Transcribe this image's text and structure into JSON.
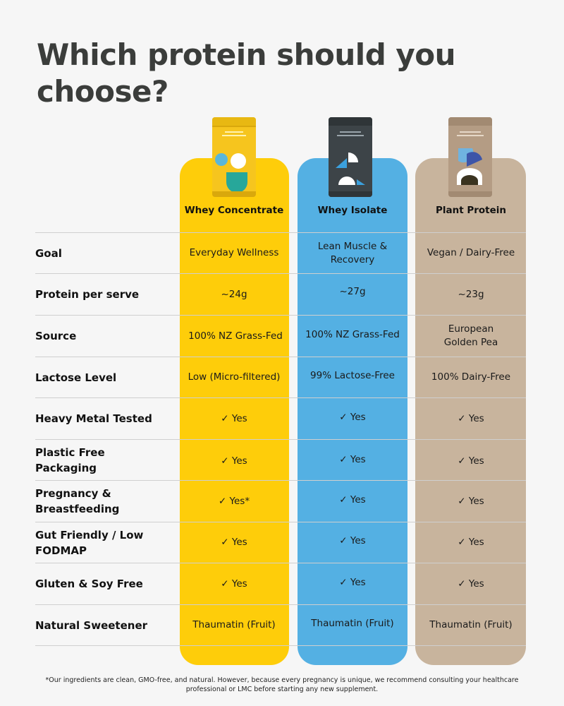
{
  "title": "Which protein should you choose?",
  "colors": {
    "whey_concentrate": "#fecd0a",
    "whey_isolate": "#54b0e3",
    "plant_protein": "#c8b49d"
  },
  "columns": [
    {
      "name": "Whey Concentrate",
      "tub_icon": "whey-concentrate-tub-image"
    },
    {
      "name": "Whey Isolate",
      "tub_icon": "whey-isolate-tub-image"
    },
    {
      "name": "Plant Protein",
      "tub_icon": "plant-protein-tub-image"
    }
  ],
  "rows": [
    {
      "label": "Goal",
      "values": [
        "Everyday Wellness",
        "Lean Muscle & Recovery",
        "Vegan / Dairy-Free"
      ]
    },
    {
      "label": "Protein per serve",
      "values": [
        "~24g",
        "~27g",
        "~23g"
      ]
    },
    {
      "label": "Source",
      "values": [
        "100% NZ Grass-Fed",
        "100% NZ Grass-Fed",
        "European Golden Pea"
      ]
    },
    {
      "label": "Lactose Level",
      "values": [
        "Low (Micro-filtered)",
        "99% Lactose-Free",
        "100% Dairy-Free"
      ]
    },
    {
      "label": "Heavy Metal Tested",
      "values": [
        "✓ Yes",
        "✓ Yes",
        "✓ Yes"
      ]
    },
    {
      "label": "Plastic Free Packaging",
      "values": [
        "✓ Yes",
        "✓ Yes",
        "✓ Yes"
      ]
    },
    {
      "label": "Pregnancy & Breastfeeding",
      "values": [
        "✓ Yes*",
        "✓ Yes",
        "✓ Yes"
      ]
    },
    {
      "label": "Gut Friendly / Low FODMAP",
      "values": [
        "✓ Yes",
        "✓ Yes",
        "✓ Yes"
      ]
    },
    {
      "label": "Gluten & Soy Free",
      "values": [
        "✓ Yes",
        "✓ Yes",
        "✓ Yes"
      ]
    },
    {
      "label": "Natural Sweetener",
      "values": [
        "Thaumatin (Fruit)",
        "Thaumatin (Fruit)",
        "Thaumatin (Fruit)"
      ]
    }
  ],
  "footnote": "*Our ingredients are clean, GMO-free, and natural. However, because every pregnancy is unique, we recommend consulting your healthcare professional or LMC before starting any new supplement."
}
